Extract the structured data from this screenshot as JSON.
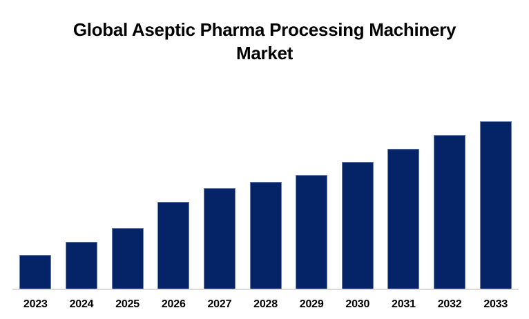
{
  "title": {
    "line1": "Global Aseptic Pharma Processing Machinery",
    "line2": "Market",
    "full": "Global Aseptic Pharma Processing Machinery Market"
  },
  "colors": {
    "bar": "#052467",
    "axis_line": "#d9d9d9",
    "title_text": "#000000",
    "label_text": "#000000",
    "background": "#ffffff"
  },
  "chart_data": {
    "type": "bar",
    "title": "Global Aseptic Pharma Processing Machinery Market",
    "categories": [
      "2023",
      "2024",
      "2025",
      "2026",
      "2027",
      "2028",
      "2029",
      "2030",
      "2031",
      "2032",
      "2033"
    ],
    "values_pct_of_max": [
      20.2,
      28.0,
      36.2,
      51.9,
      60.1,
      63.8,
      67.9,
      75.7,
      83.5,
      91.8,
      100.0
    ],
    "xlabel": "",
    "ylabel": "",
    "ylim_pct": [
      0,
      100
    ],
    "y_axis_visible": false,
    "data_labels_visible": false,
    "gridlines": false,
    "legend": "none",
    "note": "No y-axis ticks or data labels are shown in the image; values are estimated bar heights expressed as percent of the tallest (2033) bar."
  }
}
